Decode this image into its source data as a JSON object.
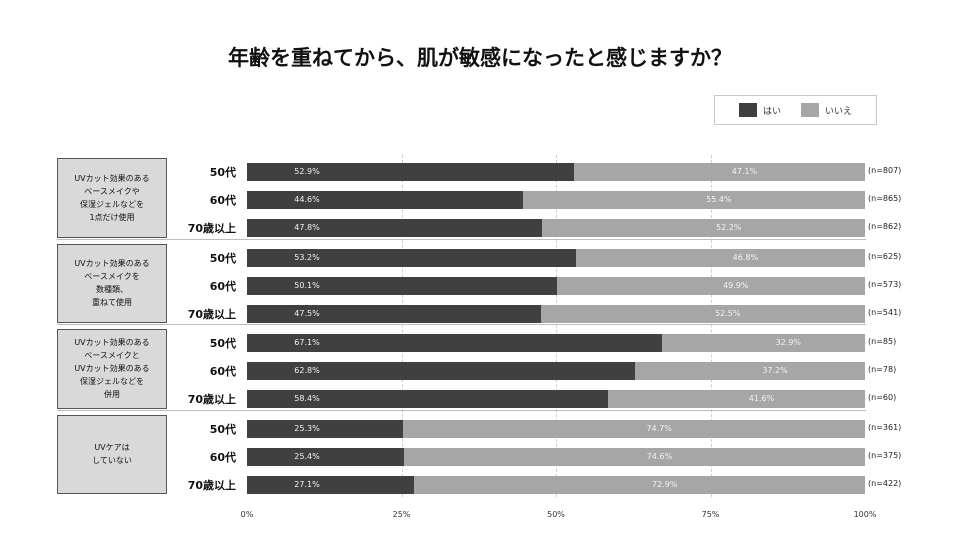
{
  "title": "年齢を重ねてから、肌が敏感になったと感じますか？",
  "legend": {
    "yes": {
      "label": "はい",
      "color": "#404040"
    },
    "no": {
      "label": "いいえ",
      "color": "#a6a6a6"
    }
  },
  "chart_data": {
    "type": "bar",
    "orientation": "horizontal-stacked-100",
    "xlim": [
      0,
      100
    ],
    "x_ticks": [
      "0%",
      "25%",
      "50%",
      "75%",
      "100%"
    ],
    "series_names": [
      "はい",
      "いいえ"
    ],
    "groups": [
      {
        "label": "UVカット効果のある\nベースメイクや\n保湿ジェルなどを\n1点だけ使用",
        "rows": [
          {
            "age": "50代",
            "yes": 52.9,
            "no": 47.1,
            "yes_label": "52.9%",
            "no_label": "47.1%",
            "n": "(n=807)"
          },
          {
            "age": "60代",
            "yes": 44.6,
            "no": 55.4,
            "yes_label": "44.6%",
            "no_label": "55.4%",
            "n": "(n=865)"
          },
          {
            "age": "70歳以上",
            "yes": 47.8,
            "no": 52.2,
            "yes_label": "47.8%",
            "no_label": "52.2%",
            "n": "(n=862)"
          }
        ]
      },
      {
        "label": "UVカット効果のある\nベースメイクを\n数種類、\n重ねて使用",
        "rows": [
          {
            "age": "50代",
            "yes": 53.2,
            "no": 46.8,
            "yes_label": "53.2%",
            "no_label": "46.8%",
            "n": "(n=625)"
          },
          {
            "age": "60代",
            "yes": 50.1,
            "no": 49.9,
            "yes_label": "50.1%",
            "no_label": "49.9%",
            "n": "(n=573)"
          },
          {
            "age": "70歳以上",
            "yes": 47.5,
            "no": 52.5,
            "yes_label": "47.5%",
            "no_label": "52.5%",
            "n": "(n=541)"
          }
        ]
      },
      {
        "label": "UVカット効果のある\nベースメイクと\nUVカット効果のある\n保湿ジェルなどを\n併用",
        "rows": [
          {
            "age": "50代",
            "yes": 67.1,
            "no": 32.9,
            "yes_label": "67.1%",
            "no_label": "32.9%",
            "n": "(n=85)"
          },
          {
            "age": "60代",
            "yes": 62.8,
            "no": 37.2,
            "yes_label": "62.8%",
            "no_label": "37.2%",
            "n": "(n=78)"
          },
          {
            "age": "70歳以上",
            "yes": 58.4,
            "no": 41.6,
            "yes_label": "58.4%",
            "no_label": "41.6%",
            "n": "(n=60)"
          }
        ]
      },
      {
        "label": "UVケアは\nしていない",
        "rows": [
          {
            "age": "50代",
            "yes": 25.3,
            "no": 74.7,
            "yes_label": "25.3%",
            "no_label": "74.7%",
            "n": "(n=361)"
          },
          {
            "age": "60代",
            "yes": 25.4,
            "no": 74.6,
            "yes_label": "25.4%",
            "no_label": "74.6%",
            "n": "(n=375)"
          },
          {
            "age": "70歳以上",
            "yes": 27.1,
            "no": 72.9,
            "yes_label": "27.1%",
            "no_label": "72.9%",
            "n": "(n=422)"
          }
        ]
      }
    ]
  }
}
